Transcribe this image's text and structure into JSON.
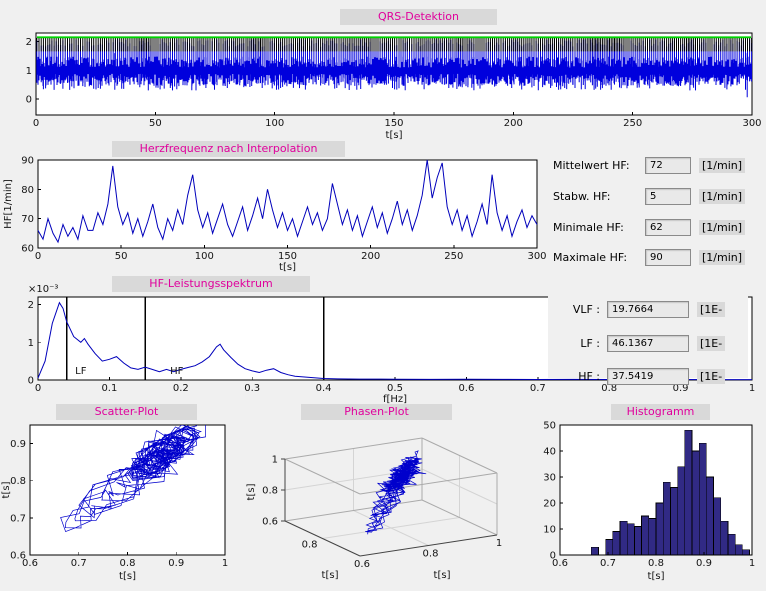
{
  "window": {
    "name": "HRV-Analyse GUI"
  },
  "colors": {
    "window_bg": "#f0f0f0",
    "title_bg": "#d9d9d9",
    "title_text": "#e0009c",
    "plot_bg": "#ffffff",
    "signal_blue": "#0000dd",
    "line_blue": "#0000bb",
    "threshold_green": "#00d400",
    "marker_black": "#000000",
    "band_label_red": "#ff0000",
    "hist_fill": "#312a85",
    "field_bg": "#e9e9e9"
  },
  "titles": {
    "qrs": "QRS-Detektion",
    "hf": "Herzfrequenz nach Interpolation",
    "spectrum": "HF-Leistungsspektrum",
    "scatter": "Scatter-Plot",
    "phase": "Phasen-Plot",
    "histogram": "Histogramm"
  },
  "readouts": {
    "hf_stats": [
      {
        "label": "Mittelwert HF:",
        "value": "72",
        "unit": "[1/min]"
      },
      {
        "label": "Stabw. HF:",
        "value": "5",
        "unit": "[1/min]"
      },
      {
        "label": "Minimale HF:",
        "value": "62",
        "unit": "[1/min]"
      },
      {
        "label": "Maximale HF:",
        "value": "90",
        "unit": "[1/min]"
      }
    ],
    "spectrum_stats": [
      {
        "label": "VLF :",
        "value": "19.7664",
        "unit": "[1E-"
      },
      {
        "label": "LF :",
        "value": "46.1367",
        "unit": "[1E-"
      },
      {
        "label": "HF :",
        "value": "37.5419",
        "unit": "[1E-"
      }
    ]
  },
  "chart_data": [
    {
      "id": "qrs",
      "type": "line",
      "title": "QRS-Detektion",
      "xlabel": "t[s]",
      "xlim": [
        0,
        300
      ],
      "xticks": [
        0,
        50,
        100,
        150,
        200,
        250,
        300
      ],
      "ylim": [
        -0.55,
        2.3
      ],
      "yticks": [
        0,
        1,
        2
      ],
      "threshold": 2.15,
      "marker_top": 2.13,
      "marker_bottom": 1.66,
      "baseline": 1,
      "spike_peak": 2.05,
      "spike_min": 0.3,
      "artifact": {
        "t0": 143,
        "t1": 147,
        "lo": 0.55,
        "hi": 1.5
      },
      "anomalies": [
        {
          "t": 33,
          "v": 0.33
        },
        {
          "t": 298,
          "v": 0.07
        }
      ]
    },
    {
      "id": "hf",
      "type": "line",
      "title": "Herzfrequenz nach Interpolation",
      "xlabel": "t[s]",
      "ylabel": "HF[1/min]",
      "xlim": [
        0,
        300
      ],
      "xticks": [
        0,
        50,
        100,
        150,
        200,
        250,
        300
      ],
      "ylim": [
        60,
        90
      ],
      "yticks": [
        60,
        70,
        80,
        90
      ],
      "t_step": 3,
      "values": [
        66,
        63,
        70,
        65,
        62,
        68,
        64,
        67,
        63,
        71,
        66,
        66,
        72,
        68,
        75,
        88,
        74,
        68,
        72,
        65,
        70,
        64,
        69,
        75,
        67,
        63,
        70,
        66,
        73,
        68,
        78,
        85,
        73,
        67,
        72,
        65,
        70,
        75,
        68,
        64,
        69,
        74,
        66,
        71,
        77,
        70,
        80,
        73,
        67,
        72,
        66,
        70,
        64,
        69,
        74,
        68,
        72,
        66,
        70,
        82,
        75,
        68,
        73,
        66,
        71,
        64,
        69,
        74,
        67,
        72,
        65,
        70,
        76,
        68,
        73,
        66,
        71,
        78,
        90,
        77,
        84,
        89,
        74,
        68,
        73,
        66,
        71,
        64,
        69,
        75,
        68,
        85,
        72,
        66,
        71,
        64,
        69,
        73,
        67,
        71,
        68
      ]
    },
    {
      "id": "spectrum",
      "type": "line",
      "title": "HF-Leistungsspektrum",
      "xlabel": "f[Hz]",
      "scale_label": "×10⁻³",
      "xlim": [
        0,
        1
      ],
      "xticks": [
        0,
        0.1,
        0.2,
        0.3,
        0.4,
        0.5,
        0.6,
        0.7,
        0.8,
        0.9,
        1
      ],
      "ylim": [
        0,
        2.2
      ],
      "yticks": [
        0,
        1,
        2
      ],
      "band_lines": [
        0.04,
        0.15,
        0.4
      ],
      "band_labels": [
        {
          "text": "LF",
          "f": 0.052
        },
        {
          "text": "HF",
          "f": 0.185
        }
      ],
      "points": [
        [
          0,
          0.05
        ],
        [
          0.01,
          0.5
        ],
        [
          0.02,
          1.5
        ],
        [
          0.03,
          2.05
        ],
        [
          0.035,
          1.9
        ],
        [
          0.04,
          1.55
        ],
        [
          0.05,
          1.15
        ],
        [
          0.06,
          1.0
        ],
        [
          0.065,
          1.1
        ],
        [
          0.07,
          0.95
        ],
        [
          0.08,
          0.7
        ],
        [
          0.09,
          0.5
        ],
        [
          0.1,
          0.55
        ],
        [
          0.11,
          0.62
        ],
        [
          0.12,
          0.45
        ],
        [
          0.13,
          0.32
        ],
        [
          0.14,
          0.28
        ],
        [
          0.15,
          0.34
        ],
        [
          0.16,
          0.28
        ],
        [
          0.17,
          0.22
        ],
        [
          0.18,
          0.28
        ],
        [
          0.19,
          0.22
        ],
        [
          0.2,
          0.28
        ],
        [
          0.21,
          0.33
        ],
        [
          0.22,
          0.38
        ],
        [
          0.23,
          0.48
        ],
        [
          0.24,
          0.62
        ],
        [
          0.25,
          0.88
        ],
        [
          0.255,
          0.95
        ],
        [
          0.26,
          0.8
        ],
        [
          0.27,
          0.6
        ],
        [
          0.28,
          0.42
        ],
        [
          0.29,
          0.3
        ],
        [
          0.3,
          0.24
        ],
        [
          0.31,
          0.2
        ],
        [
          0.32,
          0.26
        ],
        [
          0.33,
          0.3
        ],
        [
          0.34,
          0.2
        ],
        [
          0.35,
          0.14
        ],
        [
          0.36,
          0.1
        ],
        [
          0.38,
          0.07
        ],
        [
          0.4,
          0.04
        ],
        [
          0.42,
          0.03
        ],
        [
          0.45,
          0.025
        ],
        [
          0.5,
          0.02
        ],
        [
          0.55,
          0.015
        ],
        [
          0.6,
          0.02
        ],
        [
          0.65,
          0.015
        ],
        [
          0.7,
          0.012
        ],
        [
          0.75,
          0.015
        ],
        [
          0.8,
          0.012
        ],
        [
          0.85,
          0.01
        ],
        [
          0.9,
          0.012
        ],
        [
          0.95,
          0.01
        ],
        [
          1,
          0.01
        ]
      ]
    },
    {
      "id": "scatter",
      "type": "scatter",
      "title": "Scatter-Plot",
      "xlabel": "t[s]",
      "ylabel": "t[s]",
      "xlim": [
        0.6,
        1
      ],
      "xticks": [
        0.6,
        0.7,
        0.8,
        0.9,
        1
      ],
      "ylim": [
        0.6,
        0.95
      ],
      "yticks": [
        0.6,
        0.7,
        0.8,
        0.9
      ],
      "source": "rr_intervals_lag1",
      "color": "#0000cc"
    },
    {
      "id": "phase",
      "type": "line3d",
      "title": "Phasen-Plot",
      "axis_label": "t[s]",
      "lim": [
        0.6,
        1
      ],
      "ticks": [
        0.6,
        0.8,
        1
      ],
      "source": "rr_intervals_lag2",
      "color": "#0000cc"
    },
    {
      "id": "hist",
      "type": "bar",
      "title": "Histogramm",
      "xlabel": "t[s]",
      "xlim": [
        0.6,
        1
      ],
      "xticks": [
        0.6,
        0.7,
        0.8,
        0.9,
        1
      ],
      "ylim": [
        0,
        50
      ],
      "yticks": [
        0,
        10,
        20,
        30,
        40,
        50
      ],
      "bin_start": 0.665,
      "bin_width": 0.015,
      "counts": [
        3,
        0,
        6,
        9,
        13,
        12,
        11,
        15,
        14,
        20,
        28,
        26,
        34,
        48,
        40,
        43,
        30,
        22,
        13,
        8,
        4,
        2
      ]
    }
  ]
}
